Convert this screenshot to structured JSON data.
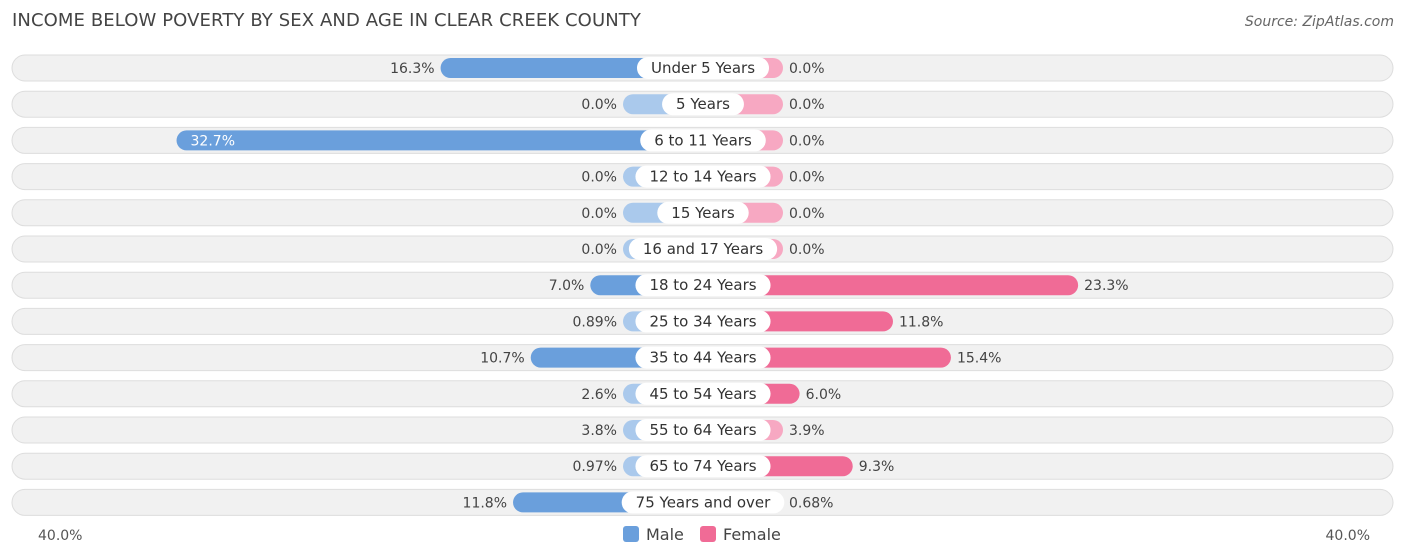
{
  "header": {
    "title": "INCOME BELOW POVERTY BY SEX AND AGE IN CLEAR CREEK COUNTY",
    "source": "Source: ZipAtlas.com"
  },
  "colors": {
    "male_strong": "#6a9fdc",
    "male_light": "#aac9ec",
    "female_strong": "#f06b96",
    "female_light": "#f7a8c2",
    "row_bg": "#f1f1f1",
    "row_border": "#dddddd"
  },
  "chart_data": {
    "type": "bar",
    "orientation": "horizontal-diverging",
    "title": "INCOME BELOW POVERTY BY SEX AND AGE IN CLEAR CREEK COUNTY",
    "categories": [
      "Under 5 Years",
      "5 Years",
      "6 to 11 Years",
      "12 to 14 Years",
      "15 Years",
      "16 and 17 Years",
      "18 to 24 Years",
      "25 to 34 Years",
      "35 to 44 Years",
      "45 to 54 Years",
      "55 to 64 Years",
      "65 to 74 Years",
      "75 Years and over"
    ],
    "series": [
      {
        "name": "Male",
        "values": [
          16.3,
          0.0,
          32.7,
          0.0,
          0.0,
          0.0,
          7.0,
          0.89,
          10.7,
          2.6,
          3.8,
          0.97,
          11.8
        ],
        "labels": [
          "16.3%",
          "0.0%",
          "32.7%",
          "0.0%",
          "0.0%",
          "0.0%",
          "7.0%",
          "0.89%",
          "10.7%",
          "2.6%",
          "3.8%",
          "0.97%",
          "11.8%"
        ]
      },
      {
        "name": "Female",
        "values": [
          0.0,
          0.0,
          0.0,
          0.0,
          0.0,
          0.0,
          23.3,
          11.8,
          15.4,
          6.0,
          3.9,
          9.3,
          0.68
        ],
        "labels": [
          "0.0%",
          "0.0%",
          "0.0%",
          "0.0%",
          "0.0%",
          "0.0%",
          "23.3%",
          "11.8%",
          "15.4%",
          "6.0%",
          "3.9%",
          "9.3%",
          "0.68%"
        ]
      }
    ],
    "axis": {
      "max": 40.0,
      "left_label": "40.0%",
      "right_label": "40.0%"
    },
    "legend": {
      "placement": "bottom-center",
      "items": [
        "Male",
        "Female"
      ]
    }
  }
}
